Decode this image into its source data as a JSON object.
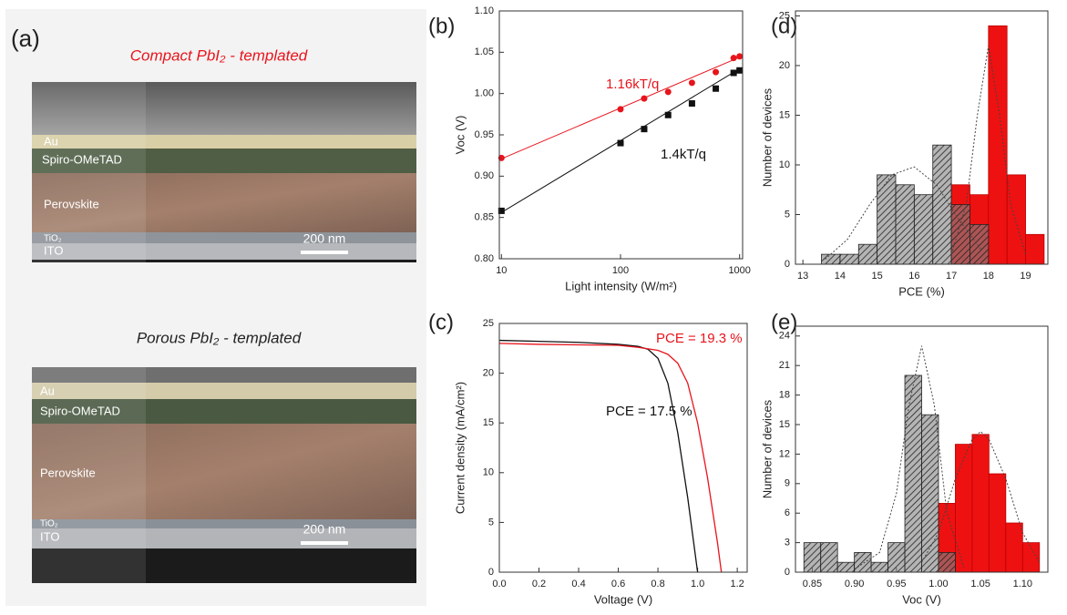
{
  "figure_a": {
    "panel_label": "(a)",
    "images": [
      {
        "title": "Compact PbI₂ - templated",
        "layers": [
          "Au",
          "Spiro-OMeTAD",
          "Perovskite",
          "TiO₂",
          "ITO"
        ],
        "scale_bar": "200 nm"
      },
      {
        "title": "Porous PbI₂ - templated",
        "layers": [
          "Au",
          "Spiro-OMeTAD",
          "Perovskite",
          "TiO₂",
          "ITO"
        ],
        "scale_bar": "200 nm"
      }
    ]
  },
  "chart_data": [
    {
      "type": "scatter",
      "panel_label": "(b)",
      "x_label": "Light intensity (W/m²)",
      "y_label": "Voc (V)",
      "xscale": "log",
      "xlim": [
        9.6,
        1060
      ],
      "xticks": [
        10,
        100,
        1000
      ],
      "ylim": [
        0.8,
        1.1
      ],
      "yticks": [
        {
          "value": 0.8,
          "label": "0.80"
        },
        0.85,
        {
          "value": 0.9,
          "label": "0.90"
        },
        0.95,
        {
          "value": 1.0,
          "label": "1.00"
        },
        1.05,
        {
          "value": 1.1,
          "label": "1.10"
        }
      ],
      "series": [
        {
          "color": "#e8141c",
          "marker": "circle",
          "x": [
            10,
            100,
            158,
            251,
            398,
            631,
            891,
            1000
          ],
          "values": [
            0.922,
            0.981,
            0.994,
            1.002,
            1.013,
            1.026,
            1.043,
            1.045
          ]
        },
        {
          "color": "#111111",
          "marker": "square",
          "x": [
            10,
            100,
            158,
            251,
            398,
            631,
            891,
            1000
          ],
          "values": [
            0.858,
            0.94,
            0.957,
            0.974,
            0.988,
            1.006,
            1.025,
            1.028
          ]
        }
      ],
      "fits": [
        {
          "color": "#e8141c",
          "x": [
            10,
            1000
          ],
          "values": [
            0.921,
            1.044
          ]
        },
        {
          "color": "#111111",
          "x": [
            10,
            1000
          ],
          "values": [
            0.856,
            1.03
          ]
        }
      ],
      "annotations": [
        {
          "text": "1.16kT/q",
          "color": "#e8141c"
        },
        {
          "text": "1.4kT/q",
          "color": "#111111"
        }
      ]
    },
    {
      "type": "line",
      "panel_label": "(c)",
      "x_label": "Voltage (V)",
      "y_label": "Current density (mA/cm²)",
      "xlim": [
        0,
        1.25
      ],
      "xticks": [
        {
          "value": 0,
          "label": "0.0"
        },
        0.2,
        0.4,
        0.6,
        0.8,
        {
          "value": 1,
          "label": "1.0"
        },
        1.2
      ],
      "ylim": [
        0,
        25
      ],
      "yticks": [
        0,
        5,
        10,
        15,
        20,
        25
      ],
      "series": [
        {
          "color": "#111111",
          "x": [
            0,
            0.2,
            0.4,
            0.6,
            0.7,
            0.75,
            0.8,
            0.85,
            0.9,
            0.95,
            1.0
          ],
          "values": [
            23.3,
            23.2,
            23.1,
            22.9,
            22.7,
            22.4,
            21.5,
            19.0,
            14.0,
            7.5,
            0
          ]
        },
        {
          "color": "#e8141c",
          "x": [
            0,
            0.2,
            0.4,
            0.6,
            0.7,
            0.8,
            0.85,
            0.9,
            0.95,
            1.0,
            1.05,
            1.1,
            1.12
          ],
          "values": [
            23.0,
            22.9,
            22.85,
            22.8,
            22.6,
            22.3,
            21.9,
            21.0,
            19.0,
            15.0,
            9.5,
            3.0,
            0
          ]
        }
      ],
      "annotations": [
        {
          "text": "PCE = 19.3 %",
          "color": "#e8141c"
        },
        {
          "text": "PCE = 17.5 %",
          "color": "#111111"
        }
      ]
    },
    {
      "type": "histogram",
      "panel_label": "(d)",
      "x_label": "PCE (%)",
      "y_label": "Number of devices",
      "xlim": [
        12.8,
        19.6
      ],
      "xticks": [
        13,
        14,
        15,
        16,
        17,
        18,
        19
      ],
      "ylim": [
        0,
        25.5
      ],
      "yticks": [
        0,
        5,
        10,
        15,
        20,
        25
      ],
      "series": [
        {
          "color": "#888888",
          "hatch": true,
          "bins": [
            13.5,
            14,
            14.5,
            15,
            15.5,
            16,
            16.5,
            17,
            17.5,
            18
          ],
          "values": [
            1,
            1,
            2,
            9,
            8,
            7,
            12,
            6,
            4
          ]
        },
        {
          "color": "#ee1111",
          "bins": [
            17,
            17.5,
            18,
            18.5,
            19,
            19.5
          ],
          "values": [
            8,
            7,
            24,
            9,
            3
          ]
        }
      ],
      "fits": [
        {
          "color": "#444444",
          "dash": true,
          "x": [
            13.6,
            14.2,
            14.8,
            15.4,
            16.0,
            16.6,
            17.2,
            17.8
          ],
          "values": [
            0.5,
            2.5,
            6,
            9,
            9.8,
            8,
            4.5,
            1.5
          ]
        },
        {
          "color": "#444444",
          "dash": true,
          "x": [
            17.0,
            17.4,
            17.7,
            18.0,
            18.3,
            18.6,
            19.0
          ],
          "values": [
            1,
            6,
            15,
            22,
            15,
            6,
            1
          ]
        }
      ]
    },
    {
      "type": "histogram",
      "panel_label": "(e)",
      "x_label": "Voc (V)",
      "y_label": "Number of devices",
      "xlim": [
        0.83,
        1.13
      ],
      "xticks": [
        0.85,
        {
          "value": 0.9,
          "label": "0.90"
        },
        0.95,
        {
          "value": 1.0,
          "label": "1.00"
        },
        1.05,
        {
          "value": 1.1,
          "label": "1.10"
        }
      ],
      "ylim": [
        0,
        25
      ],
      "yticks": [
        0,
        3,
        6,
        9,
        12,
        15,
        18,
        21,
        24
      ],
      "series": [
        {
          "color": "#888888",
          "hatch": true,
          "bins": [
            0.84,
            0.86,
            0.88,
            0.9,
            0.92,
            0.94,
            0.96,
            0.98,
            1.0,
            1.02
          ],
          "values": [
            3,
            3,
            1,
            2,
            1,
            3,
            20,
            16,
            2
          ]
        },
        {
          "color": "#ee1111",
          "bins": [
            1.0,
            1.02,
            1.04,
            1.06,
            1.08,
            1.1,
            1.12
          ],
          "values": [
            7,
            13,
            14,
            10,
            5,
            3
          ]
        }
      ],
      "fits": [
        {
          "color": "#444444",
          "dash": true,
          "x": [
            0.9,
            0.93,
            0.95,
            0.965,
            0.98,
            0.995,
            1.01,
            1.03
          ],
          "values": [
            0.3,
            2,
            8,
            17,
            23,
            17,
            6,
            0.5
          ]
        },
        {
          "color": "#444444",
          "dash": true,
          "x": [
            0.98,
            1.0,
            1.02,
            1.04,
            1.05,
            1.06,
            1.08,
            1.1,
            1.12
          ],
          "values": [
            1,
            4,
            9.5,
            13.5,
            14.3,
            13.5,
            9.5,
            4,
            1
          ]
        }
      ]
    }
  ]
}
